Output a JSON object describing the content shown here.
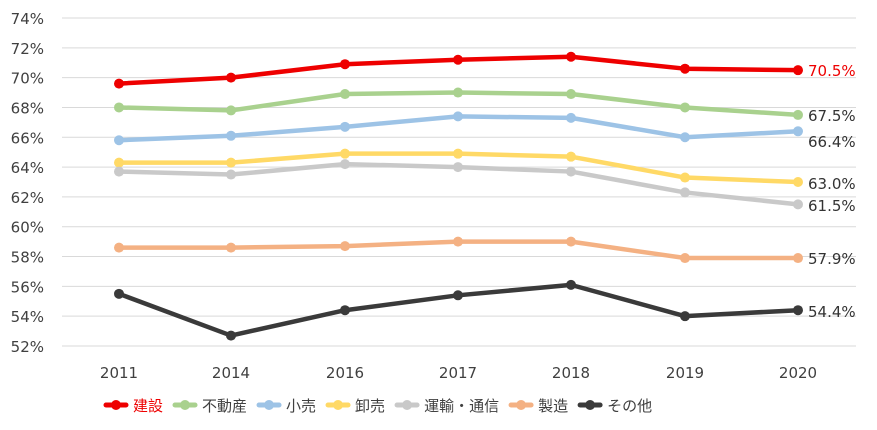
{
  "chart_data": {
    "type": "line",
    "categories": [
      "2011",
      "2014",
      "2016",
      "2017",
      "2018",
      "2019",
      "2020"
    ],
    "ylim": [
      52,
      74
    ],
    "y_unit": "%",
    "y_ticks": [
      "52%",
      "54%",
      "56%",
      "58%",
      "60%",
      "62%",
      "64%",
      "66%",
      "68%",
      "70%",
      "72%",
      "74%"
    ],
    "grid": true,
    "legend_position": "bottom",
    "series": [
      {
        "name": "建設",
        "color": "#ee0000",
        "label_color": "#ee0000",
        "values": [
          69.6,
          70.0,
          70.9,
          71.2,
          71.4,
          70.6,
          70.5
        ],
        "end_label": "70.5%"
      },
      {
        "name": "不動産",
        "color": "#a9d18e",
        "label_color": "#333333",
        "values": [
          68.0,
          67.8,
          68.9,
          69.0,
          68.9,
          68.0,
          67.5
        ],
        "end_label": "67.5%"
      },
      {
        "name": "小売",
        "color": "#9dc3e6",
        "label_color": "#333333",
        "values": [
          65.8,
          66.1,
          66.7,
          67.4,
          67.3,
          66.0,
          66.4
        ],
        "end_label": "66.4%"
      },
      {
        "name": "卸売",
        "color": "#ffd966",
        "label_color": "#333333",
        "values": [
          64.3,
          64.3,
          64.9,
          64.9,
          64.7,
          63.3,
          63.0
        ],
        "end_label": "63.0%"
      },
      {
        "name": "運輸・通信",
        "color": "#c9c9c9",
        "label_color": "#333333",
        "values": [
          63.7,
          63.5,
          64.2,
          64.0,
          63.7,
          62.3,
          61.5
        ],
        "end_label": "61.5%"
      },
      {
        "name": "製造",
        "color": "#f4b183",
        "label_color": "#333333",
        "values": [
          58.6,
          58.6,
          58.7,
          59.0,
          59.0,
          57.9,
          57.9
        ],
        "end_label": "57.9%"
      },
      {
        "name": "その他",
        "color": "#3a3a3a",
        "label_color": "#333333",
        "values": [
          55.5,
          52.7,
          54.4,
          55.4,
          56.1,
          54.0,
          54.4
        ],
        "end_label": "54.4%"
      }
    ]
  }
}
